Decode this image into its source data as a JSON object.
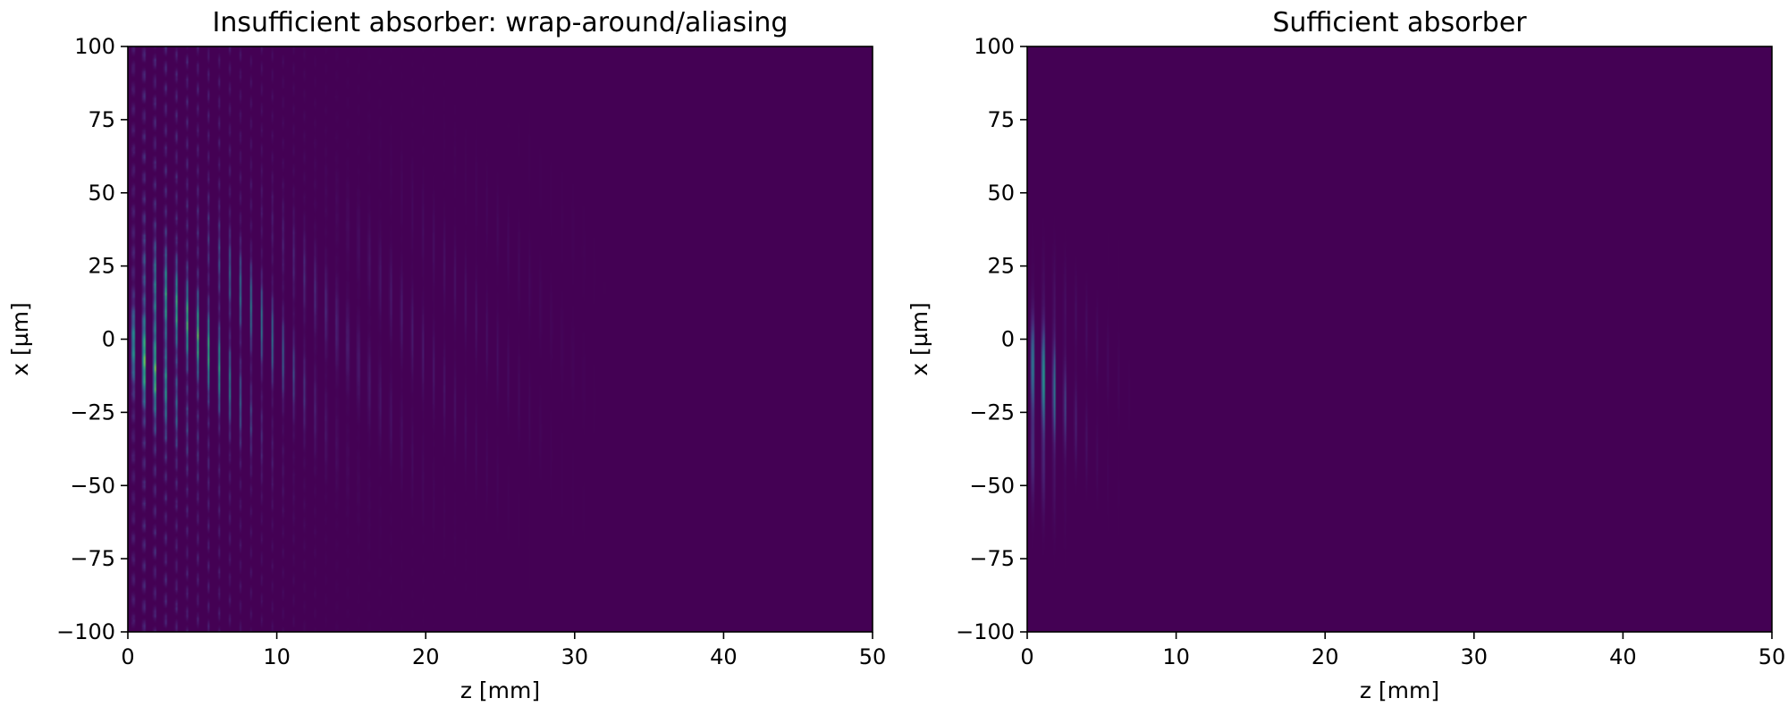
{
  "chart_data": [
    {
      "type": "heatmap",
      "title": "Insufficient absorber: wrap-around/aliasing",
      "xlabel": "z [mm]",
      "ylabel": "x [µm]",
      "xlim": [
        0,
        50
      ],
      "ylim": [
        -100,
        100
      ],
      "xticks": [
        0,
        10,
        20,
        30,
        40,
        50
      ],
      "yticks": [
        -100,
        -75,
        -50,
        -25,
        0,
        25,
        50,
        75,
        100
      ],
      "xtick_labels": [
        "0",
        "10",
        "20",
        "30",
        "40",
        "50"
      ],
      "ytick_labels": [
        "−100",
        "−75",
        "−50",
        "−25",
        "0",
        "25",
        "50",
        "75",
        "100"
      ],
      "colormap": "viridis",
      "background_color": "#440154",
      "peak_color": "#fde725",
      "pattern": {
        "fringe_period_mm": 0.72,
        "fringe_decay_length_mm": 8.0,
        "extent_z_mm": 30,
        "peak_z_mm": 1.8,
        "peak_x_um": 0,
        "beam_halfwidth_um": 22,
        "wrap_around_fraction": 0.35
      },
      "grid": false
    },
    {
      "type": "heatmap",
      "title": "Sufficient absorber",
      "xlabel": "z [mm]",
      "ylabel": "x [µm]",
      "xlim": [
        0,
        50
      ],
      "ylim": [
        -100,
        100
      ],
      "xticks": [
        0,
        10,
        20,
        30,
        40,
        50
      ],
      "yticks": [
        -100,
        -75,
        -50,
        -25,
        0,
        25,
        50,
        75,
        100
      ],
      "xtick_labels": [
        "0",
        "10",
        "20",
        "30",
        "40",
        "50"
      ],
      "ytick_labels": [
        "−100",
        "−75",
        "−50",
        "−25",
        "0",
        "25",
        "50",
        "75",
        "100"
      ],
      "colormap": "viridis",
      "background_color": "#440154",
      "peak_color": "#fde725",
      "pattern": {
        "fringe_period_mm": 0.72,
        "fringe_decay_length_mm": 1.6,
        "extent_z_mm": 6,
        "peak_z_mm": 0.9,
        "peak_x_um": -18,
        "beam_halfwidth_um": 25,
        "wrap_around_fraction": 0.0
      },
      "grid": false
    }
  ]
}
